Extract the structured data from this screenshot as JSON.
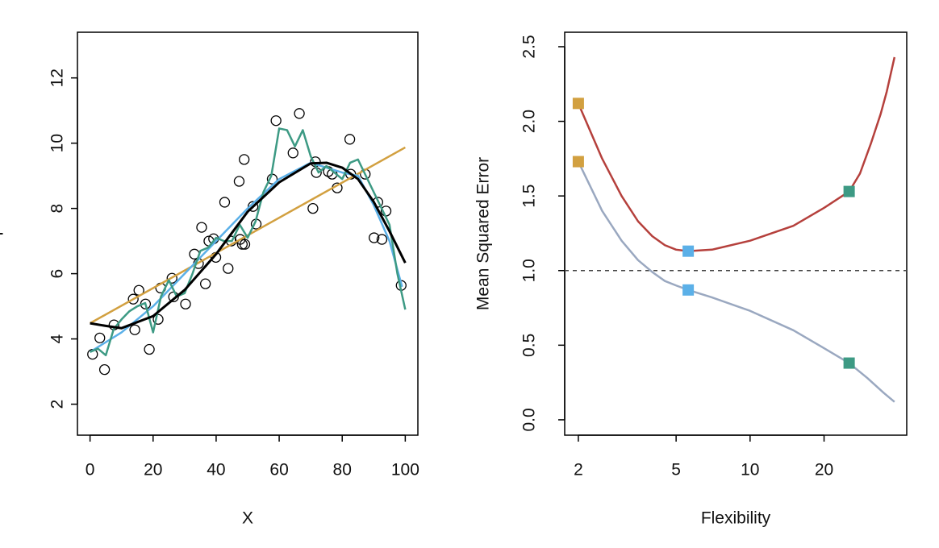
{
  "chart_data": [
    {
      "type": "scatter",
      "xlabel": "X",
      "ylabel": "Y",
      "xlim": [
        -4,
        104
      ],
      "ylim": [
        1.05,
        13.4
      ],
      "xticks": [
        0,
        20,
        40,
        60,
        80,
        100
      ],
      "yticks": [
        2,
        4,
        6,
        8,
        10,
        12
      ],
      "series": [
        {
          "mode": "markers",
          "color": "#000000",
          "x": [
            0.8,
            3.1,
            4.6,
            7.6,
            13.7,
            15.5,
            14.2,
            17.6,
            18.8,
            21.6,
            22.4,
            26.0,
            26.5,
            30.3,
            33.1,
            34.4,
            35.4,
            36.6,
            37.7,
            39.2,
            39.9,
            42.7,
            43.8,
            44.8,
            47.3,
            47.6,
            48.3,
            48.9,
            49.1,
            51.7,
            52.7,
            57.8,
            59.0,
            64.4,
            66.4,
            70.7,
            71.5,
            71.8,
            75.6,
            76.8,
            78.4,
            82.4,
            82.7,
            87.3,
            90.1,
            91.3,
            92.6,
            93.9,
            98.7
          ],
          "values": [
            3.53,
            4.03,
            3.06,
            4.43,
            5.22,
            5.49,
            4.28,
            5.07,
            3.68,
            4.6,
            5.56,
            5.86,
            5.29,
            5.07,
            6.6,
            6.31,
            7.42,
            5.69,
            7.0,
            7.07,
            6.5,
            8.19,
            6.16,
            7.0,
            8.83,
            7.05,
            6.9,
            9.5,
            6.9,
            8.06,
            7.52,
            8.9,
            10.69,
            9.7,
            10.91,
            8.0,
            9.43,
            9.1,
            9.13,
            9.05,
            8.63,
            10.12,
            9.05,
            9.05,
            7.1,
            8.19,
            7.05,
            7.92,
            5.64
          ]
        },
        {
          "mode": "line",
          "color": "#D2A040",
          "width": 2.5,
          "x": [
            0,
            100
          ],
          "values": [
            4.48,
            9.87
          ]
        },
        {
          "mode": "line",
          "color": "#5BB0E8",
          "width": 2.5,
          "x": [
            0,
            10,
            20,
            30,
            40,
            50,
            60,
            70,
            80,
            85,
            90,
            95,
            99
          ],
          "values": [
            3.6,
            4.2,
            5.0,
            6.0,
            7.0,
            8.0,
            8.9,
            9.4,
            9.1,
            9.0,
            8.1,
            7.0,
            5.6
          ]
        },
        {
          "mode": "line",
          "color": "#3D9A84",
          "width": 2.5,
          "x": [
            0,
            2.5,
            5,
            7.5,
            10,
            12.5,
            15,
            17.5,
            20,
            22.5,
            25,
            27.5,
            30,
            32.5,
            35,
            37.5,
            40,
            42.5,
            45,
            47.5,
            50,
            52.5,
            55,
            57.5,
            60,
            62.5,
            65,
            67.5,
            70,
            72.5,
            75,
            77.5,
            80,
            82.5,
            85,
            87.5,
            90,
            92.5,
            95,
            97.5,
            100
          ],
          "values": [
            3.6,
            3.7,
            3.5,
            4.3,
            4.6,
            4.85,
            5.0,
            5.1,
            4.2,
            5.3,
            5.8,
            5.3,
            5.4,
            6.0,
            6.7,
            6.8,
            7.1,
            7.0,
            7.0,
            7.5,
            7.1,
            7.6,
            8.5,
            9.0,
            10.45,
            10.4,
            9.9,
            10.4,
            9.6,
            9.1,
            9.3,
            9.1,
            8.9,
            9.4,
            9.5,
            9.0,
            8.5,
            8.0,
            7.5,
            6.0,
            4.9
          ]
        },
        {
          "mode": "line",
          "color": "#000000",
          "width": 3,
          "x": [
            0,
            5,
            10,
            20,
            30,
            40,
            50,
            60,
            70,
            75,
            80,
            85,
            90,
            95,
            100
          ],
          "values": [
            4.48,
            4.4,
            4.33,
            4.7,
            5.5,
            6.6,
            7.9,
            8.8,
            9.38,
            9.4,
            9.25,
            8.9,
            8.2,
            7.3,
            6.33
          ]
        }
      ]
    },
    {
      "type": "line",
      "xlabel": "Flexibility",
      "ylabel": "Mean Squared Error",
      "xscale": "log",
      "xlim": [
        1.76,
        43.4
      ],
      "ylim": [
        -0.103,
        2.597
      ],
      "xticks": [
        2,
        5,
        10,
        20
      ],
      "yticks": [
        0.0,
        0.5,
        1.0,
        1.5,
        2.0,
        2.5
      ],
      "hline": 1.0,
      "series": [
        {
          "mode": "line",
          "color": "#B5403C",
          "width": 2.5,
          "x": [
            2,
            2.5,
            3,
            3.5,
            4,
            4.5,
            5,
            5.6,
            7,
            10,
            15,
            20,
            25.3,
            28,
            31,
            34,
            36,
            38.7
          ],
          "values": [
            2.12,
            1.75,
            1.5,
            1.33,
            1.23,
            1.17,
            1.14,
            1.13,
            1.14,
            1.2,
            1.3,
            1.42,
            1.53,
            1.65,
            1.85,
            2.05,
            2.2,
            2.43
          ]
        },
        {
          "mode": "line",
          "color": "#9AA8C0",
          "width": 2.5,
          "x": [
            2,
            2.5,
            3,
            3.5,
            4,
            4.5,
            5,
            5.6,
            7,
            10,
            15,
            20,
            25.3,
            30,
            35,
            38.7
          ],
          "values": [
            1.73,
            1.4,
            1.2,
            1.07,
            0.99,
            0.93,
            0.9,
            0.87,
            0.82,
            0.73,
            0.6,
            0.48,
            0.38,
            0.28,
            0.18,
            0.12
          ]
        },
        {
          "mode": "squares",
          "color": "#D2A040",
          "x": [
            2,
            2
          ],
          "values": [
            2.12,
            1.73
          ]
        },
        {
          "mode": "squares",
          "color": "#5BB0E8",
          "x": [
            5.6,
            5.6
          ],
          "values": [
            1.13,
            0.87
          ]
        },
        {
          "mode": "squares",
          "color": "#3D9A84",
          "x": [
            25.3,
            25.3
          ],
          "values": [
            1.53,
            0.38
          ]
        }
      ]
    }
  ]
}
